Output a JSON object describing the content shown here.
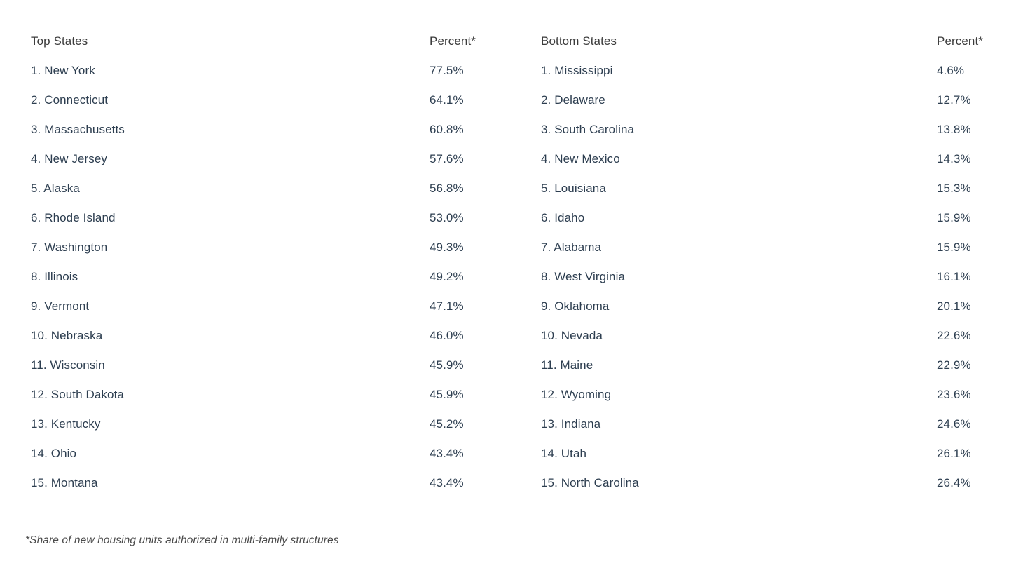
{
  "chart_data": {
    "type": "table",
    "columns": [
      "Top States",
      "Percent*",
      "Bottom States",
      "Percent*"
    ],
    "top_states": [
      {
        "rank": 1,
        "state": "New York",
        "percent": 77.5
      },
      {
        "rank": 2,
        "state": "Connecticut",
        "percent": 64.1
      },
      {
        "rank": 3,
        "state": "Massachusetts",
        "percent": 60.8
      },
      {
        "rank": 4,
        "state": "New Jersey",
        "percent": 57.6
      },
      {
        "rank": 5,
        "state": "Alaska",
        "percent": 56.8
      },
      {
        "rank": 6,
        "state": "Rhode Island",
        "percent": 53.0
      },
      {
        "rank": 7,
        "state": "Washington",
        "percent": 49.3
      },
      {
        "rank": 8,
        "state": "Illinois",
        "percent": 49.2
      },
      {
        "rank": 9,
        "state": "Vermont",
        "percent": 47.1
      },
      {
        "rank": 10,
        "state": "Nebraska",
        "percent": 46.0
      },
      {
        "rank": 11,
        "state": "Wisconsin",
        "percent": 45.9
      },
      {
        "rank": 12,
        "state": "South Dakota",
        "percent": 45.9
      },
      {
        "rank": 13,
        "state": "Kentucky",
        "percent": 45.2
      },
      {
        "rank": 14,
        "state": "Ohio",
        "percent": 43.4
      },
      {
        "rank": 15,
        "state": "Montana",
        "percent": 43.4
      }
    ],
    "bottom_states": [
      {
        "rank": 1,
        "state": "Mississippi",
        "percent": 4.6
      },
      {
        "rank": 2,
        "state": "Delaware",
        "percent": 12.7
      },
      {
        "rank": 3,
        "state": "South Carolina",
        "percent": 13.8
      },
      {
        "rank": 4,
        "state": "New Mexico",
        "percent": 14.3
      },
      {
        "rank": 5,
        "state": "Louisiana",
        "percent": 15.3
      },
      {
        "rank": 6,
        "state": "Idaho",
        "percent": 15.9
      },
      {
        "rank": 7,
        "state": "Alabama",
        "percent": 15.9
      },
      {
        "rank": 8,
        "state": "West Virginia",
        "percent": 16.1
      },
      {
        "rank": 9,
        "state": "Oklahoma",
        "percent": 20.1
      },
      {
        "rank": 10,
        "state": "Nevada",
        "percent": 22.6
      },
      {
        "rank": 11,
        "state": "Maine",
        "percent": 22.9
      },
      {
        "rank": 12,
        "state": "Wyoming",
        "percent": 23.6
      },
      {
        "rank": 13,
        "state": "Indiana",
        "percent": 24.6
      },
      {
        "rank": 14,
        "state": "Utah",
        "percent": 26.1
      },
      {
        "rank": 15,
        "state": "North Carolina",
        "percent": 26.4
      }
    ]
  },
  "footnote": "*Share of new housing units authorized in multi-family structures",
  "colors": {
    "body_text": "#2d3e50",
    "header_text": "#3b3b3b",
    "footnote_text": "#4a4a4a",
    "background": "#ffffff"
  }
}
